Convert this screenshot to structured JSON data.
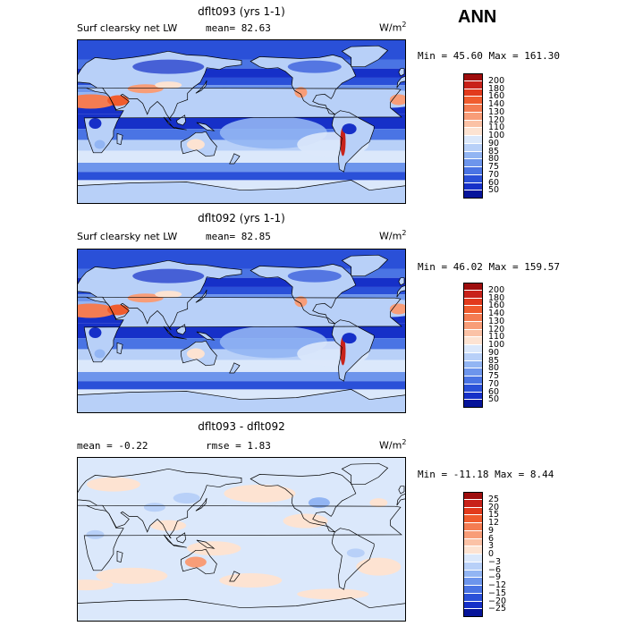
{
  "season": "ANN",
  "panels": [
    {
      "title": "dflt093 (yrs 1-1)",
      "left_label": "Surf clearsky net LW",
      "stat1": "mean=  82.63",
      "stat2": "",
      "units": "W/m",
      "units_sup": "2",
      "minmax": "Min =  45.60 Max = 161.30",
      "kind": "field",
      "legend": {
        "labels": [
          "200",
          "180",
          "160",
          "140",
          "130",
          "120",
          "110",
          "100",
          "90",
          "85",
          "80",
          "75",
          "70",
          "60",
          "50"
        ],
        "colors": [
          "#9e0d0d",
          "#c8221a",
          "#e23a1c",
          "#f05c2e",
          "#f47c52",
          "#f89d78",
          "#fbc2a6",
          "#fde3d2",
          "#dbe8fb",
          "#b8d0f8",
          "#92b5f3",
          "#6d95ec",
          "#4a74e4",
          "#2a50d8",
          "#1630c8",
          "#06149a"
        ]
      }
    },
    {
      "title": "dflt092 (yrs 1-1)",
      "left_label": "Surf clearsky net LW",
      "stat1": "mean=  82.85",
      "stat2": "",
      "units": "W/m",
      "units_sup": "2",
      "minmax": "Min =  46.02 Max = 159.57",
      "kind": "field",
      "legend": {
        "labels": [
          "200",
          "180",
          "160",
          "140",
          "130",
          "120",
          "110",
          "100",
          "90",
          "85",
          "80",
          "75",
          "70",
          "60",
          "50"
        ],
        "colors": [
          "#9e0d0d",
          "#c8221a",
          "#e23a1c",
          "#f05c2e",
          "#f47c52",
          "#f89d78",
          "#fbc2a6",
          "#fde3d2",
          "#dbe8fb",
          "#b8d0f8",
          "#92b5f3",
          "#6d95ec",
          "#4a74e4",
          "#2a50d8",
          "#1630c8",
          "#06149a"
        ]
      }
    },
    {
      "title": "dflt093 - dflt092",
      "left_label": "mean =  -0.22",
      "stat1": "rmse =   1.83",
      "stat2": "",
      "units": "W/m",
      "units_sup": "2",
      "minmax": "Min = -11.18 Max =   8.44",
      "kind": "diff",
      "legend": {
        "labels": [
          "25",
          "20",
          "15",
          "12",
          "9",
          "6",
          "3",
          "0",
          "−3",
          "−6",
          "−9",
          "−12",
          "−15",
          "−20",
          "−25"
        ],
        "colors": [
          "#9e0d0d",
          "#c8221a",
          "#e23a1c",
          "#f05c2e",
          "#f47c52",
          "#f89d78",
          "#fbc2a6",
          "#fde3d2",
          "#dbe8fb",
          "#b8d0f8",
          "#92b5f3",
          "#6d95ec",
          "#4a74e4",
          "#2a50d8",
          "#1630c8",
          "#06149a"
        ]
      }
    }
  ]
}
